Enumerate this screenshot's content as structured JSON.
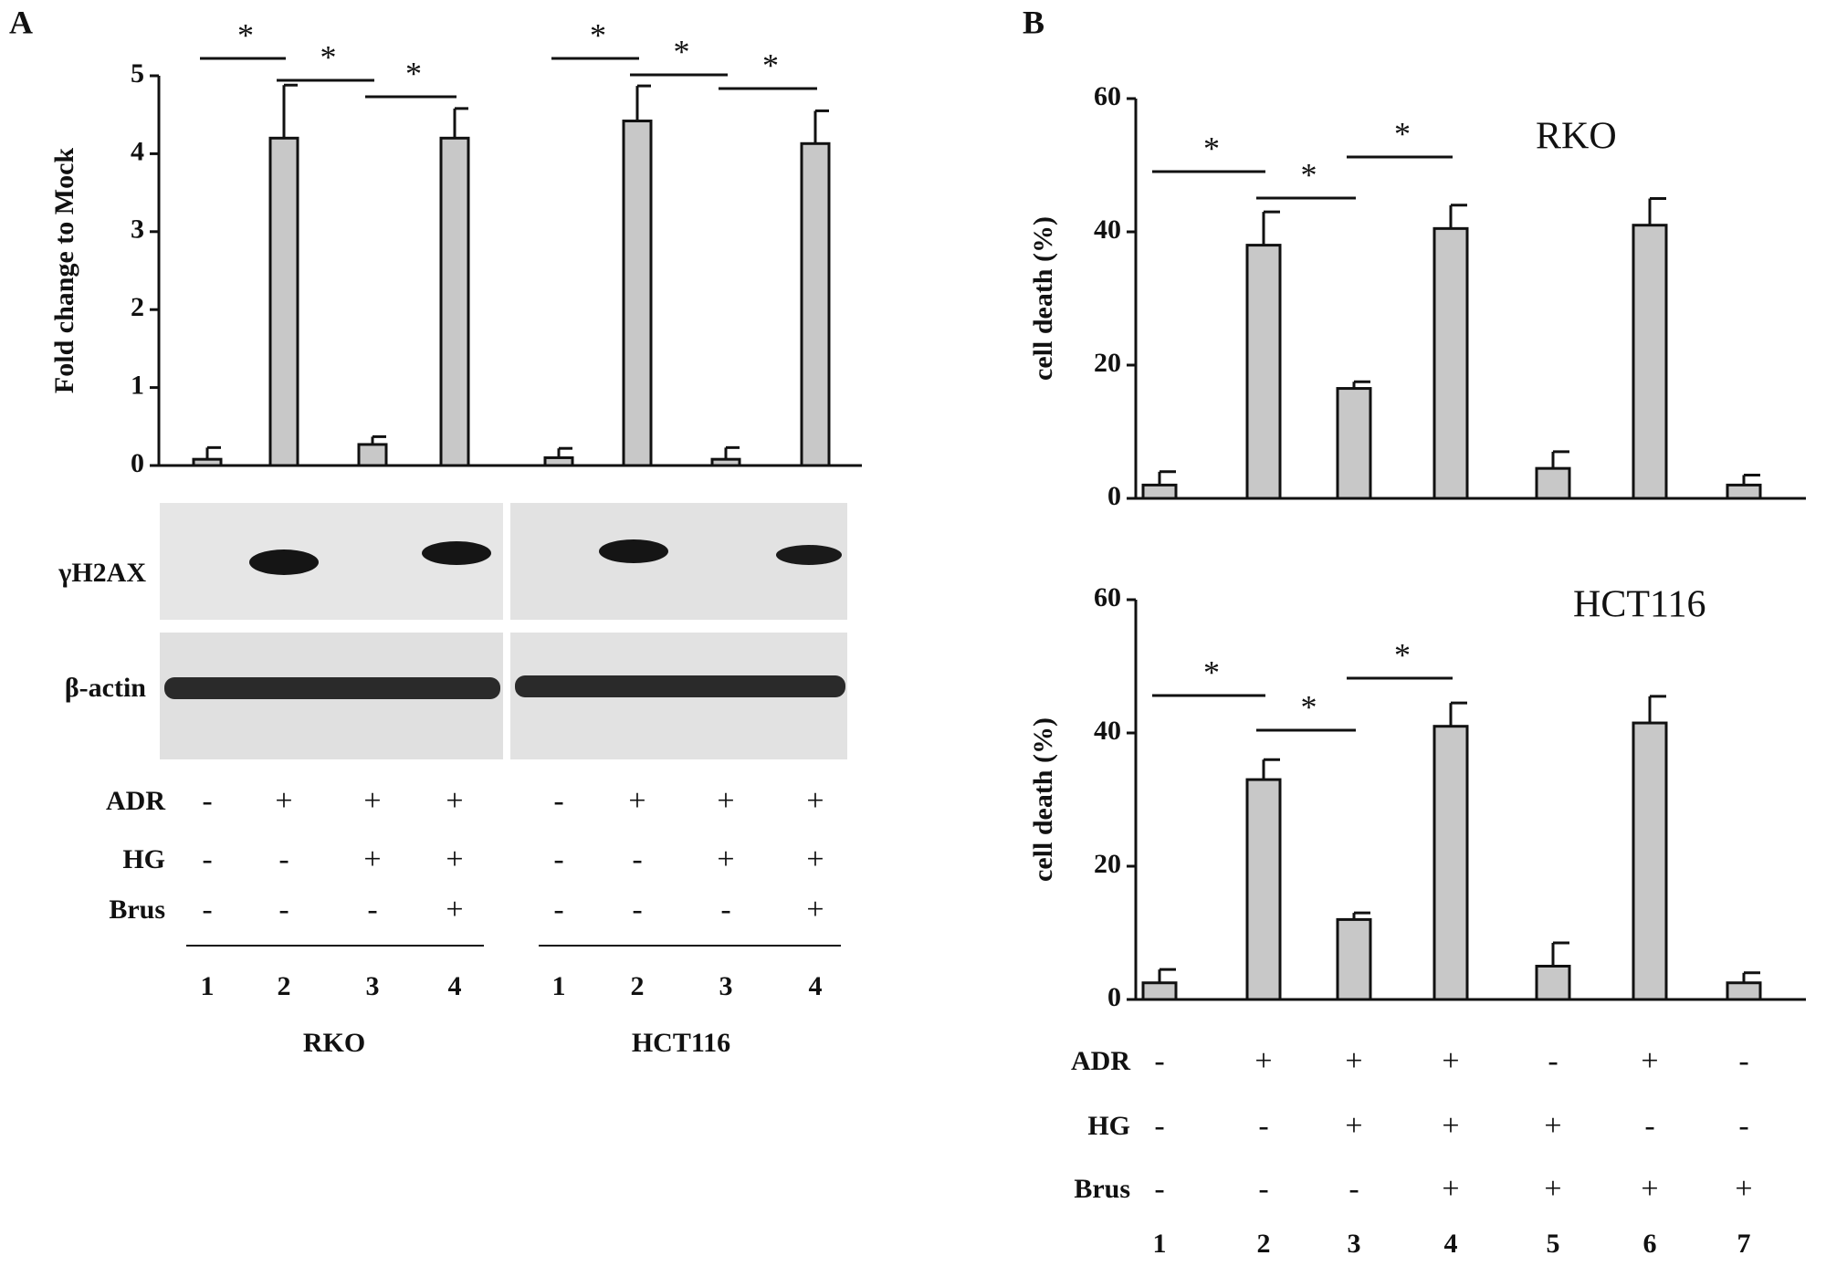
{
  "panels": [
    "A",
    "B"
  ],
  "chart_data": [
    {
      "type": "bar",
      "ylabel": "Fold change to Mock",
      "categories": [
        "1",
        "2",
        "3",
        "4",
        "1",
        "2",
        "3",
        "4"
      ],
      "values": [
        0.08,
        4.2,
        0.27,
        4.2,
        0.1,
        4.42,
        0.08,
        4.13
      ],
      "errors": [
        0.15,
        0.68,
        0.1,
        0.38,
        0.12,
        0.45,
        0.15,
        0.42
      ],
      "color": "#c8c8c8",
      "ylim": [
        0,
        5
      ],
      "yticks": [
        0,
        1,
        2,
        3,
        4,
        5
      ],
      "annotations": [
        "*",
        "*",
        "*",
        "*",
        "*",
        "*"
      ]
    },
    {
      "type": "bar",
      "title": "RKO",
      "ylabel": "cell death (%)",
      "values": [
        2,
        38,
        16.5,
        40.5,
        4.5,
        41,
        2
      ],
      "errors": [
        2,
        5,
        1,
        3.5,
        2.5,
        4,
        1.5
      ],
      "color": "#c8c8c8",
      "ylim": [
        0,
        60
      ],
      "yticks": [
        0,
        20,
        40,
        60
      ],
      "annotations": [
        "*",
        "*",
        "*"
      ]
    },
    {
      "type": "bar",
      "title": "HCT116",
      "ylabel": "cell death (%)",
      "categories": [
        "1",
        "2",
        "3",
        "4",
        "5",
        "6",
        "7"
      ],
      "values": [
        2.5,
        33,
        12,
        41,
        5,
        41.5,
        2.5
      ],
      "errors": [
        2,
        3,
        1,
        3.5,
        3.5,
        4,
        1.5
      ],
      "color": "#c8c8c8",
      "ylim": [
        0,
        60
      ],
      "yticks": [
        0,
        20,
        40,
        60
      ],
      "annotations": [
        "*",
        "*",
        "*"
      ]
    }
  ],
  "blot": {
    "rows": [
      "γH2AX",
      "β-actin"
    ]
  },
  "treatments_A": {
    "rows": [
      {
        "label": "ADR",
        "values": [
          "-",
          "+",
          "+",
          "+",
          "-",
          "+",
          "+",
          "+"
        ]
      },
      {
        "label": "HG",
        "values": [
          "-",
          "-",
          "+",
          "+",
          "-",
          "-",
          "+",
          "+"
        ]
      },
      {
        "label": "Brus",
        "values": [
          "-",
          "-",
          "-",
          "+",
          "-",
          "-",
          "-",
          "+"
        ]
      }
    ],
    "groups": [
      "RKO",
      "HCT116"
    ]
  },
  "treatments_B": {
    "rows": [
      {
        "label": "ADR",
        "values": [
          "-",
          "+",
          "+",
          "+",
          "-",
          "+",
          "-"
        ]
      },
      {
        "label": "HG",
        "values": [
          "-",
          "-",
          "+",
          "+",
          "+",
          "-",
          "-"
        ]
      },
      {
        "label": "Brus",
        "values": [
          "-",
          "-",
          "-",
          "+",
          "+",
          "+",
          "+"
        ]
      }
    ]
  }
}
